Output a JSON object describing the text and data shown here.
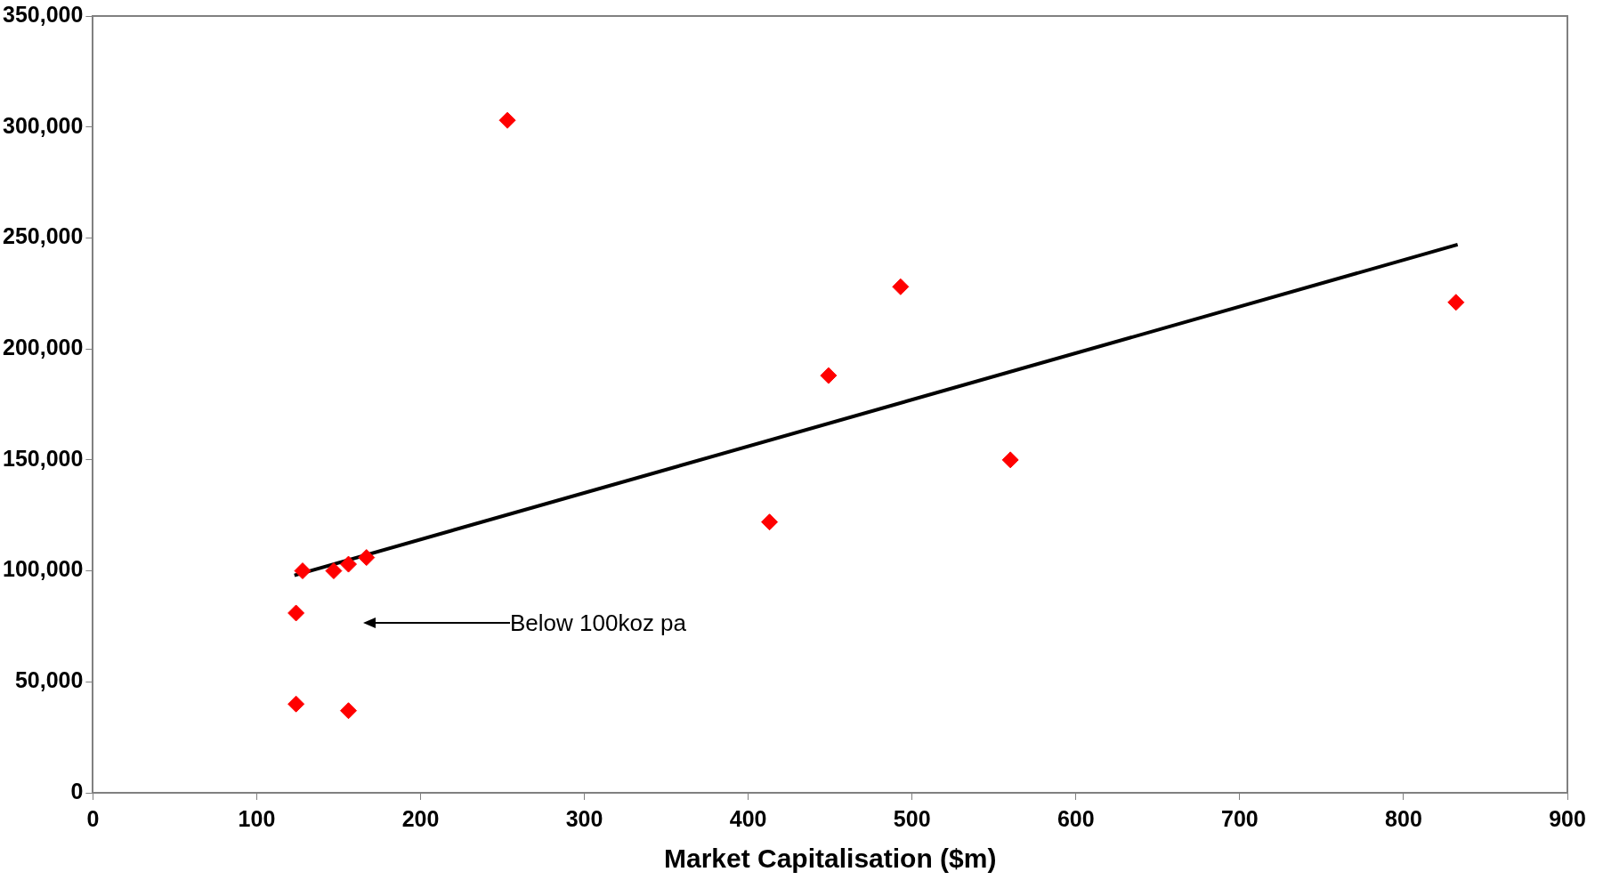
{
  "chart_data": {
    "type": "scatter",
    "xlabel": "Market Capitalisation ($m)",
    "xlim": [
      0,
      900
    ],
    "xticks": [
      0,
      100,
      200,
      300,
      400,
      500,
      600,
      700,
      800,
      900
    ],
    "ylim": [
      0,
      350000
    ],
    "yticks": [
      0,
      {
        "value": 50000,
        "label": "50,000"
      },
      {
        "value": 100000,
        "label": "100,000"
      },
      {
        "value": 150000,
        "label": "150,000"
      },
      {
        "value": 200000,
        "label": "200,000"
      },
      {
        "value": 250000,
        "label": "250,000"
      },
      {
        "value": 300000,
        "label": "300,000"
      },
      {
        "value": 350000,
        "label": "350,000"
      }
    ],
    "grid": false,
    "legend": false,
    "series": [
      {
        "color": "#ff0000",
        "marker": "diamond",
        "x": [
          124,
          128,
          147,
          156,
          167,
          124,
          156,
          253,
          413,
          449,
          493,
          560,
          832
        ],
        "values": [
          81000,
          100000,
          100000,
          103000,
          106000,
          40000,
          37000,
          303000,
          122000,
          188000,
          228000,
          150000,
          221000
        ]
      },
      {
        "type": "line",
        "marker": "none",
        "color": "#000000",
        "x": [
          123,
          833
        ],
        "values": [
          98000,
          247000
        ]
      }
    ],
    "annotations": [
      "Below 100koz pa"
    ]
  }
}
